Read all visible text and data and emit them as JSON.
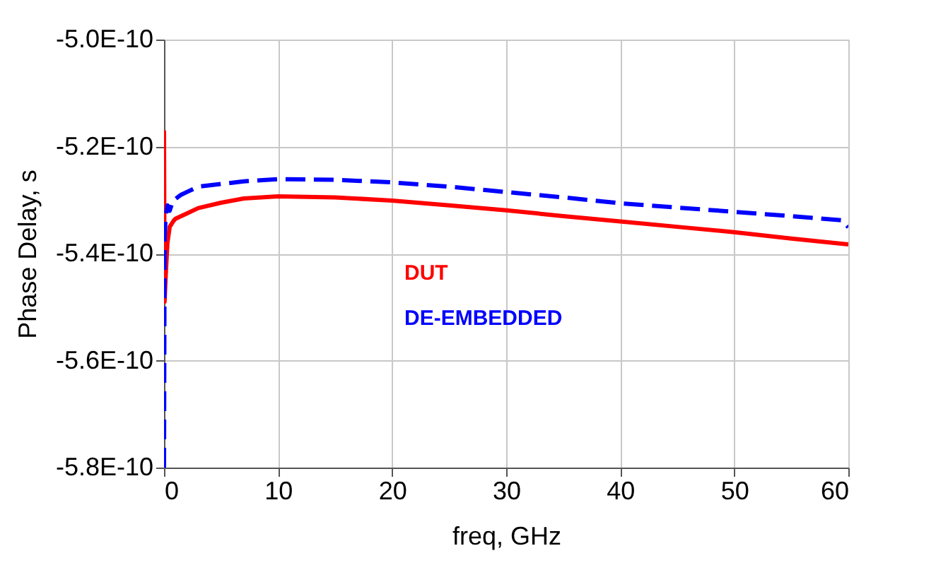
{
  "chart_data": {
    "type": "line",
    "xlabel": "freq, GHz",
    "ylabel": "Phase Delay, s",
    "xlim": [
      0,
      60
    ],
    "xticks": [
      0,
      10,
      20,
      30,
      40,
      50,
      60
    ],
    "ylim": [
      -5.8e-10,
      -5e-10
    ],
    "yticks": [
      {
        "value": -5.8e-10,
        "label": "-5.8E-10"
      },
      {
        "value": -5.6e-10,
        "label": "-5.6E-10"
      },
      {
        "value": -5.4e-10,
        "label": "-5.4E-10"
      },
      {
        "value": -5.2e-10,
        "label": "-5.2E-10"
      },
      {
        "value": -5e-10,
        "label": "-5.0E-10"
      }
    ],
    "grid": true,
    "legend": false,
    "series": [
      {
        "name": "DUT",
        "color": "#ff0000",
        "line_style": "solid",
        "x": [
          0,
          0.05,
          0.15,
          0.3,
          0.5,
          0.8,
          1,
          1.5,
          2,
          3,
          5,
          7,
          10,
          15,
          20,
          25,
          30,
          35,
          40,
          45,
          50,
          55,
          60
        ],
        "values": [
          -5.17e-10,
          -5.49e-10,
          -5.44e-10,
          -5.38e-10,
          -5.35e-10,
          -5.34e-10,
          -5.335e-10,
          -5.33e-10,
          -5.325e-10,
          -5.315e-10,
          -5.305e-10,
          -5.297e-10,
          -5.293e-10,
          -5.295e-10,
          -5.301e-10,
          -5.31e-10,
          -5.319e-10,
          -5.33e-10,
          -5.34e-10,
          -5.35e-10,
          -5.36e-10,
          -5.372e-10,
          -5.383e-10
        ]
      },
      {
        "name": "DE-EMBEDDED",
        "color": "#0000ff",
        "line_style": "dashed",
        "x": [
          0,
          0.05,
          0.15,
          0.3,
          0.5,
          0.8,
          1,
          1.5,
          2,
          3,
          5,
          7,
          10,
          15,
          20,
          25,
          30,
          35,
          40,
          45,
          50,
          55,
          59.5,
          60
        ],
        "values": [
          -5.8e-10,
          -5.37e-10,
          -5.33e-10,
          -5.31e-10,
          -5.32e-10,
          -5.3e-10,
          -5.298e-10,
          -5.29e-10,
          -5.285e-10,
          -5.275e-10,
          -5.27e-10,
          -5.265e-10,
          -5.261e-10,
          -5.262e-10,
          -5.267e-10,
          -5.275e-10,
          -5.285e-10,
          -5.295e-10,
          -5.306e-10,
          -5.314e-10,
          -5.322e-10,
          -5.33e-10,
          -5.338e-10,
          -5.351e-10
        ]
      }
    ]
  }
}
